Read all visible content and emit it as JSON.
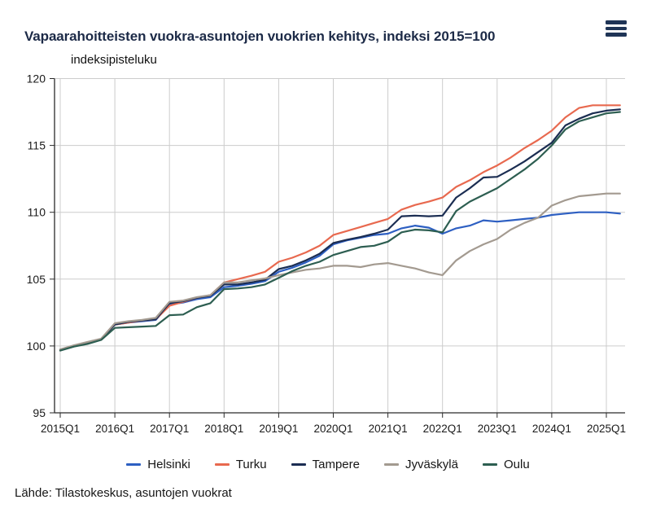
{
  "header": {
    "title": "Vapaarahoitteisten vuokra-asuntojen vuokrien kehitys, indeksi 2015=100",
    "menu_icon": "hamburger"
  },
  "source": {
    "text": "Lähde: Tilastokeskus, asuntojen vuokrat"
  },
  "chart_data": {
    "type": "line",
    "title": "Vapaarahoitteisten vuokra-asuntojen vuokrien kehitys, indeksi 2015=100",
    "ylabel": "indeksipisteluku",
    "xlabel": "",
    "ylim": [
      95,
      120
    ],
    "y_ticks": [
      95,
      100,
      105,
      110,
      115,
      120
    ],
    "x_tick_labels": [
      "2015Q1",
      "2016Q1",
      "2017Q1",
      "2018Q1",
      "2019Q1",
      "2020Q1",
      "2021Q1",
      "2022Q1",
      "2023Q1",
      "2024Q1",
      "2025Q1"
    ],
    "x_start": "2015Q1",
    "x_end": "2025Q2",
    "x_frequency": "quarterly",
    "grid": true,
    "legend_position": "bottom",
    "axis_colors": {
      "axis": "#2a2a2a",
      "grid": "#cccccc",
      "tick_label": "#1a1a1a"
    },
    "series": [
      {
        "name": "Helsinki",
        "color": "#2d5fc2",
        "values": [
          99.7,
          100.0,
          100.2,
          100.5,
          101.6,
          101.75,
          101.85,
          101.95,
          103.1,
          103.25,
          103.5,
          103.65,
          104.4,
          104.5,
          104.65,
          104.85,
          105.55,
          105.85,
          106.25,
          106.75,
          107.6,
          107.9,
          108.1,
          108.3,
          108.4,
          108.8,
          109.0,
          108.85,
          108.4,
          108.8,
          109.0,
          109.4,
          109.3,
          109.4,
          109.5,
          109.6,
          109.8,
          109.9,
          110.0,
          110.0,
          110.0,
          109.9
        ]
      },
      {
        "name": "Turku",
        "color": "#e8694f",
        "values": [
          99.7,
          100.0,
          100.25,
          100.5,
          101.6,
          101.75,
          101.9,
          102.0,
          103.0,
          103.3,
          103.6,
          103.8,
          104.75,
          105.0,
          105.25,
          105.55,
          106.3,
          106.6,
          107.0,
          107.5,
          108.3,
          108.6,
          108.9,
          109.2,
          109.5,
          110.2,
          110.55,
          110.8,
          111.1,
          111.9,
          112.4,
          113.0,
          113.5,
          114.1,
          114.8,
          115.4,
          116.1,
          117.1,
          117.8,
          118.0,
          118.0,
          118.0
        ]
      },
      {
        "name": "Tampere",
        "color": "#1b2d52",
        "values": [
          99.7,
          100.0,
          100.2,
          100.5,
          101.6,
          101.8,
          101.9,
          102.0,
          103.2,
          103.35,
          103.6,
          103.75,
          104.6,
          104.6,
          104.75,
          104.95,
          105.75,
          106.0,
          106.4,
          106.9,
          107.7,
          107.95,
          108.15,
          108.4,
          108.7,
          109.7,
          109.75,
          109.7,
          109.75,
          111.1,
          111.8,
          112.6,
          112.65,
          113.2,
          113.8,
          114.5,
          115.2,
          116.5,
          117.0,
          117.4,
          117.6,
          117.7
        ]
      },
      {
        "name": "Jyväskylä",
        "color": "#a39a90",
        "values": [
          99.75,
          100.05,
          100.3,
          100.55,
          101.7,
          101.85,
          101.95,
          102.1,
          103.3,
          103.4,
          103.65,
          103.8,
          104.75,
          104.75,
          104.9,
          105.05,
          105.3,
          105.5,
          105.7,
          105.8,
          106.0,
          106.0,
          105.9,
          106.1,
          106.2,
          106.0,
          105.8,
          105.5,
          105.3,
          106.4,
          107.1,
          107.6,
          108.0,
          108.7,
          109.2,
          109.6,
          110.5,
          110.9,
          111.2,
          111.3,
          111.4,
          111.4
        ]
      },
      {
        "name": "Oulu",
        "color": "#2d5e51",
        "values": [
          99.65,
          99.95,
          100.15,
          100.45,
          101.35,
          101.4,
          101.45,
          101.5,
          102.3,
          102.35,
          102.9,
          103.2,
          104.25,
          104.3,
          104.4,
          104.6,
          105.1,
          105.6,
          106.0,
          106.3,
          106.8,
          107.1,
          107.4,
          107.5,
          107.8,
          108.5,
          108.7,
          108.65,
          108.5,
          110.1,
          110.8,
          111.3,
          111.8,
          112.5,
          113.2,
          114.0,
          115.0,
          116.2,
          116.8,
          117.1,
          117.4,
          117.5
        ]
      }
    ]
  }
}
